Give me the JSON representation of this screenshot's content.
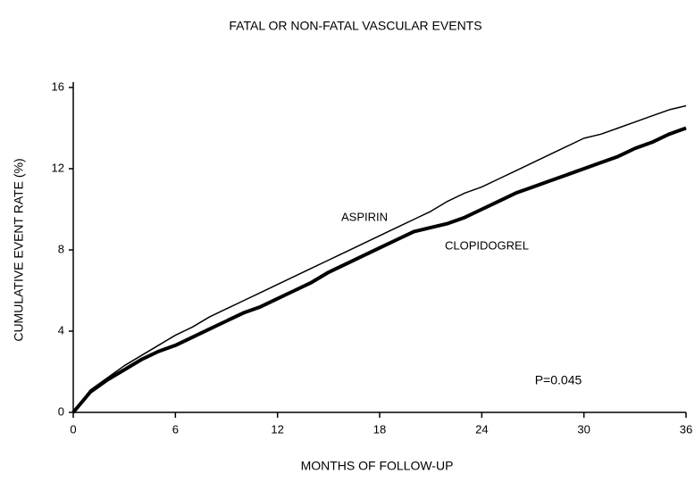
{
  "chart_data": {
    "type": "line",
    "title": "FATAL OR NON-FATAL VASCULAR EVENTS",
    "x_label": "MONTHS OF FOLLOW-UP",
    "y_label": "CUMULATIVE EVENT RATE (%)",
    "x": [
      0,
      1,
      2,
      3,
      4,
      5,
      6,
      7,
      8,
      9,
      10,
      11,
      12,
      13,
      14,
      15,
      16,
      17,
      18,
      19,
      20,
      21,
      22,
      23,
      24,
      25,
      26,
      27,
      28,
      29,
      30,
      31,
      32,
      33,
      34,
      35,
      36
    ],
    "series": [
      {
        "name": "ASPIRIN",
        "color": "#000000",
        "values": [
          0,
          1.1,
          1.7,
          2.3,
          2.8,
          3.3,
          3.8,
          4.2,
          4.7,
          5.1,
          5.5,
          5.9,
          6.3,
          6.7,
          7.1,
          7.5,
          7.9,
          8.3,
          8.7,
          9.1,
          9.5,
          9.9,
          10.4,
          10.8,
          11.1,
          11.5,
          11.9,
          12.3,
          12.7,
          13.1,
          13.5,
          13.7,
          14.0,
          14.3,
          14.6,
          14.9,
          15.1
        ]
      },
      {
        "name": "CLOPIDOGREL",
        "color": "#000000",
        "values": [
          0,
          1.0,
          1.6,
          2.1,
          2.6,
          3.0,
          3.3,
          3.7,
          4.1,
          4.5,
          4.9,
          5.2,
          5.6,
          6.0,
          6.4,
          6.9,
          7.3,
          7.7,
          8.1,
          8.5,
          8.9,
          9.1,
          9.3,
          9.6,
          10.0,
          10.4,
          10.8,
          11.1,
          11.4,
          11.7,
          12.0,
          12.3,
          12.6,
          13.0,
          13.3,
          13.7,
          14.0
        ]
      }
    ],
    "annotations": [
      "P=0.045"
    ],
    "xlim": [
      0,
      36
    ],
    "xticks": [
      0,
      6,
      12,
      18,
      24,
      30,
      36
    ],
    "ylim": [
      0,
      16
    ],
    "yticks": [
      0,
      4,
      8,
      12,
      16
    ]
  }
}
